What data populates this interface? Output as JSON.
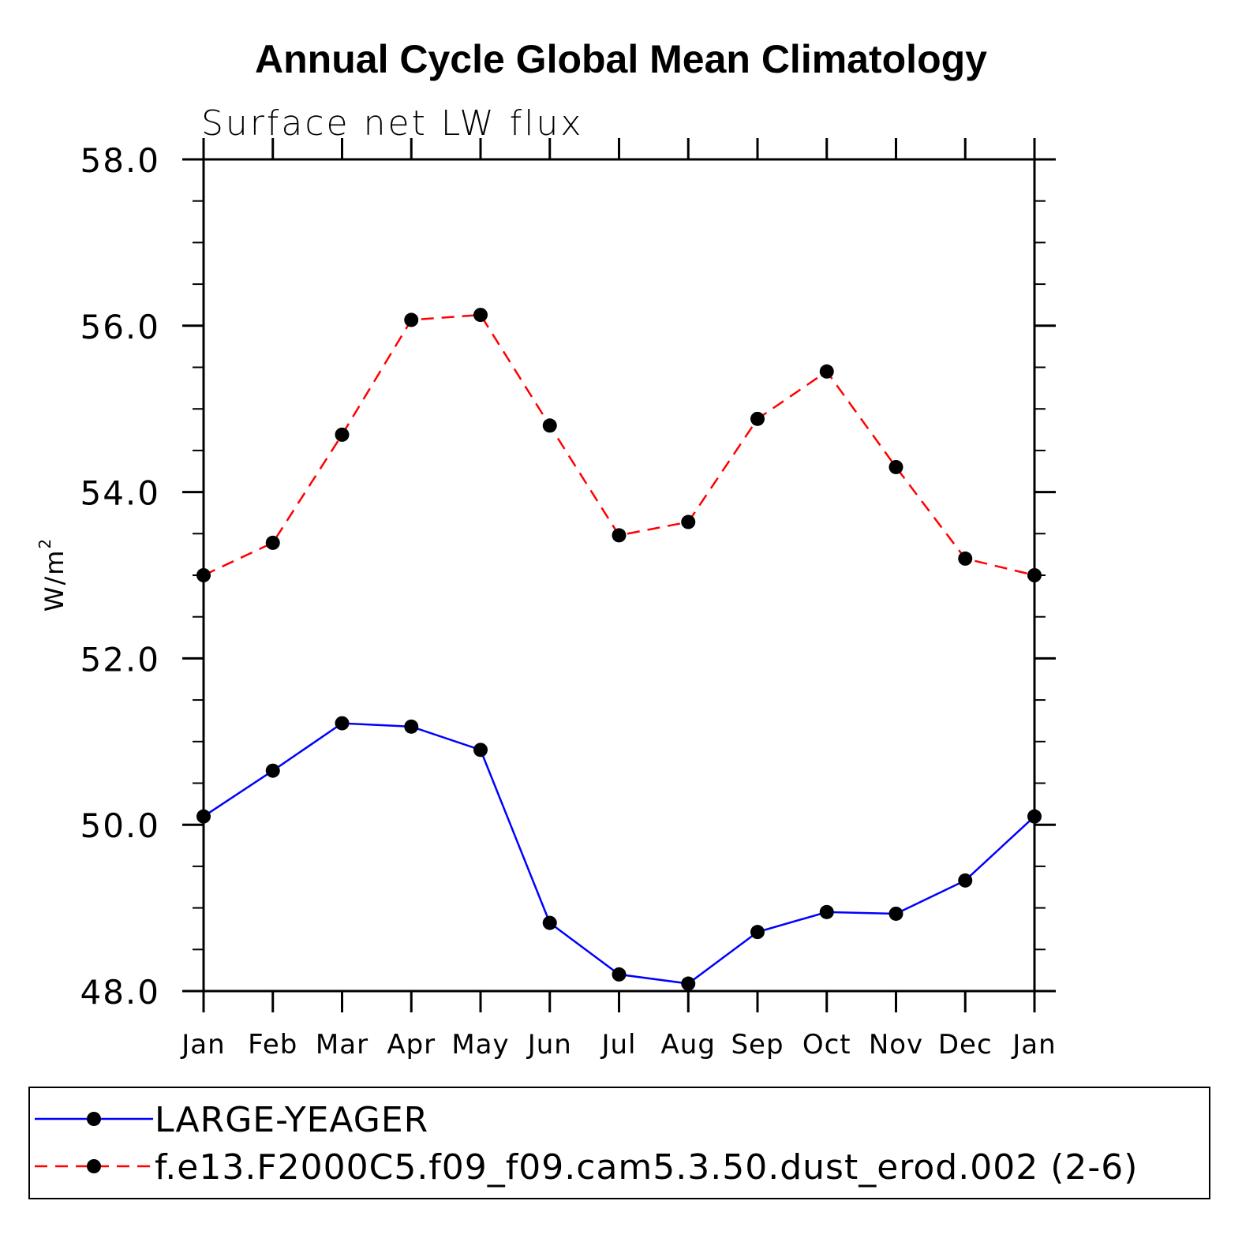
{
  "chart_data": {
    "type": "line",
    "title": "Annual Cycle Global Mean Climatology",
    "subtitle": "Surface net LW flux",
    "ylabel": "W/m",
    "ylabel_superscript": "2",
    "categories": [
      "Jan",
      "Feb",
      "Mar",
      "Apr",
      "May",
      "Jun",
      "Jul",
      "Aug",
      "Sep",
      "Oct",
      "Nov",
      "Dec",
      "Jan"
    ],
    "ylim": [
      48.0,
      58.0
    ],
    "yticks": [
      "48.0",
      "50.0",
      "52.0",
      "54.0",
      "56.0",
      "58.0"
    ],
    "yticks_values": [
      48,
      50,
      52,
      54,
      56,
      58
    ],
    "grid": false,
    "legend_position": "bottom",
    "series": [
      {
        "name": "LARGE-YEAGER",
        "color": "#0000ff",
        "dash": "solid",
        "marker": "filled-circle",
        "values": [
          50.1,
          50.65,
          51.22,
          51.18,
          50.9,
          48.82,
          48.2,
          48.09,
          48.71,
          48.95,
          48.93,
          49.33,
          50.1
        ]
      },
      {
        "name": "f.e13.F2000C5.f09_f09.cam5.3.50.dust_erod.002 (2-6)",
        "color": "#ff0000",
        "dash": "dashed",
        "marker": "filled-circle",
        "values": [
          53.0,
          53.39,
          54.69,
          56.07,
          56.13,
          54.8,
          53.48,
          53.64,
          54.88,
          55.45,
          54.3,
          53.2,
          53.0
        ]
      }
    ]
  }
}
